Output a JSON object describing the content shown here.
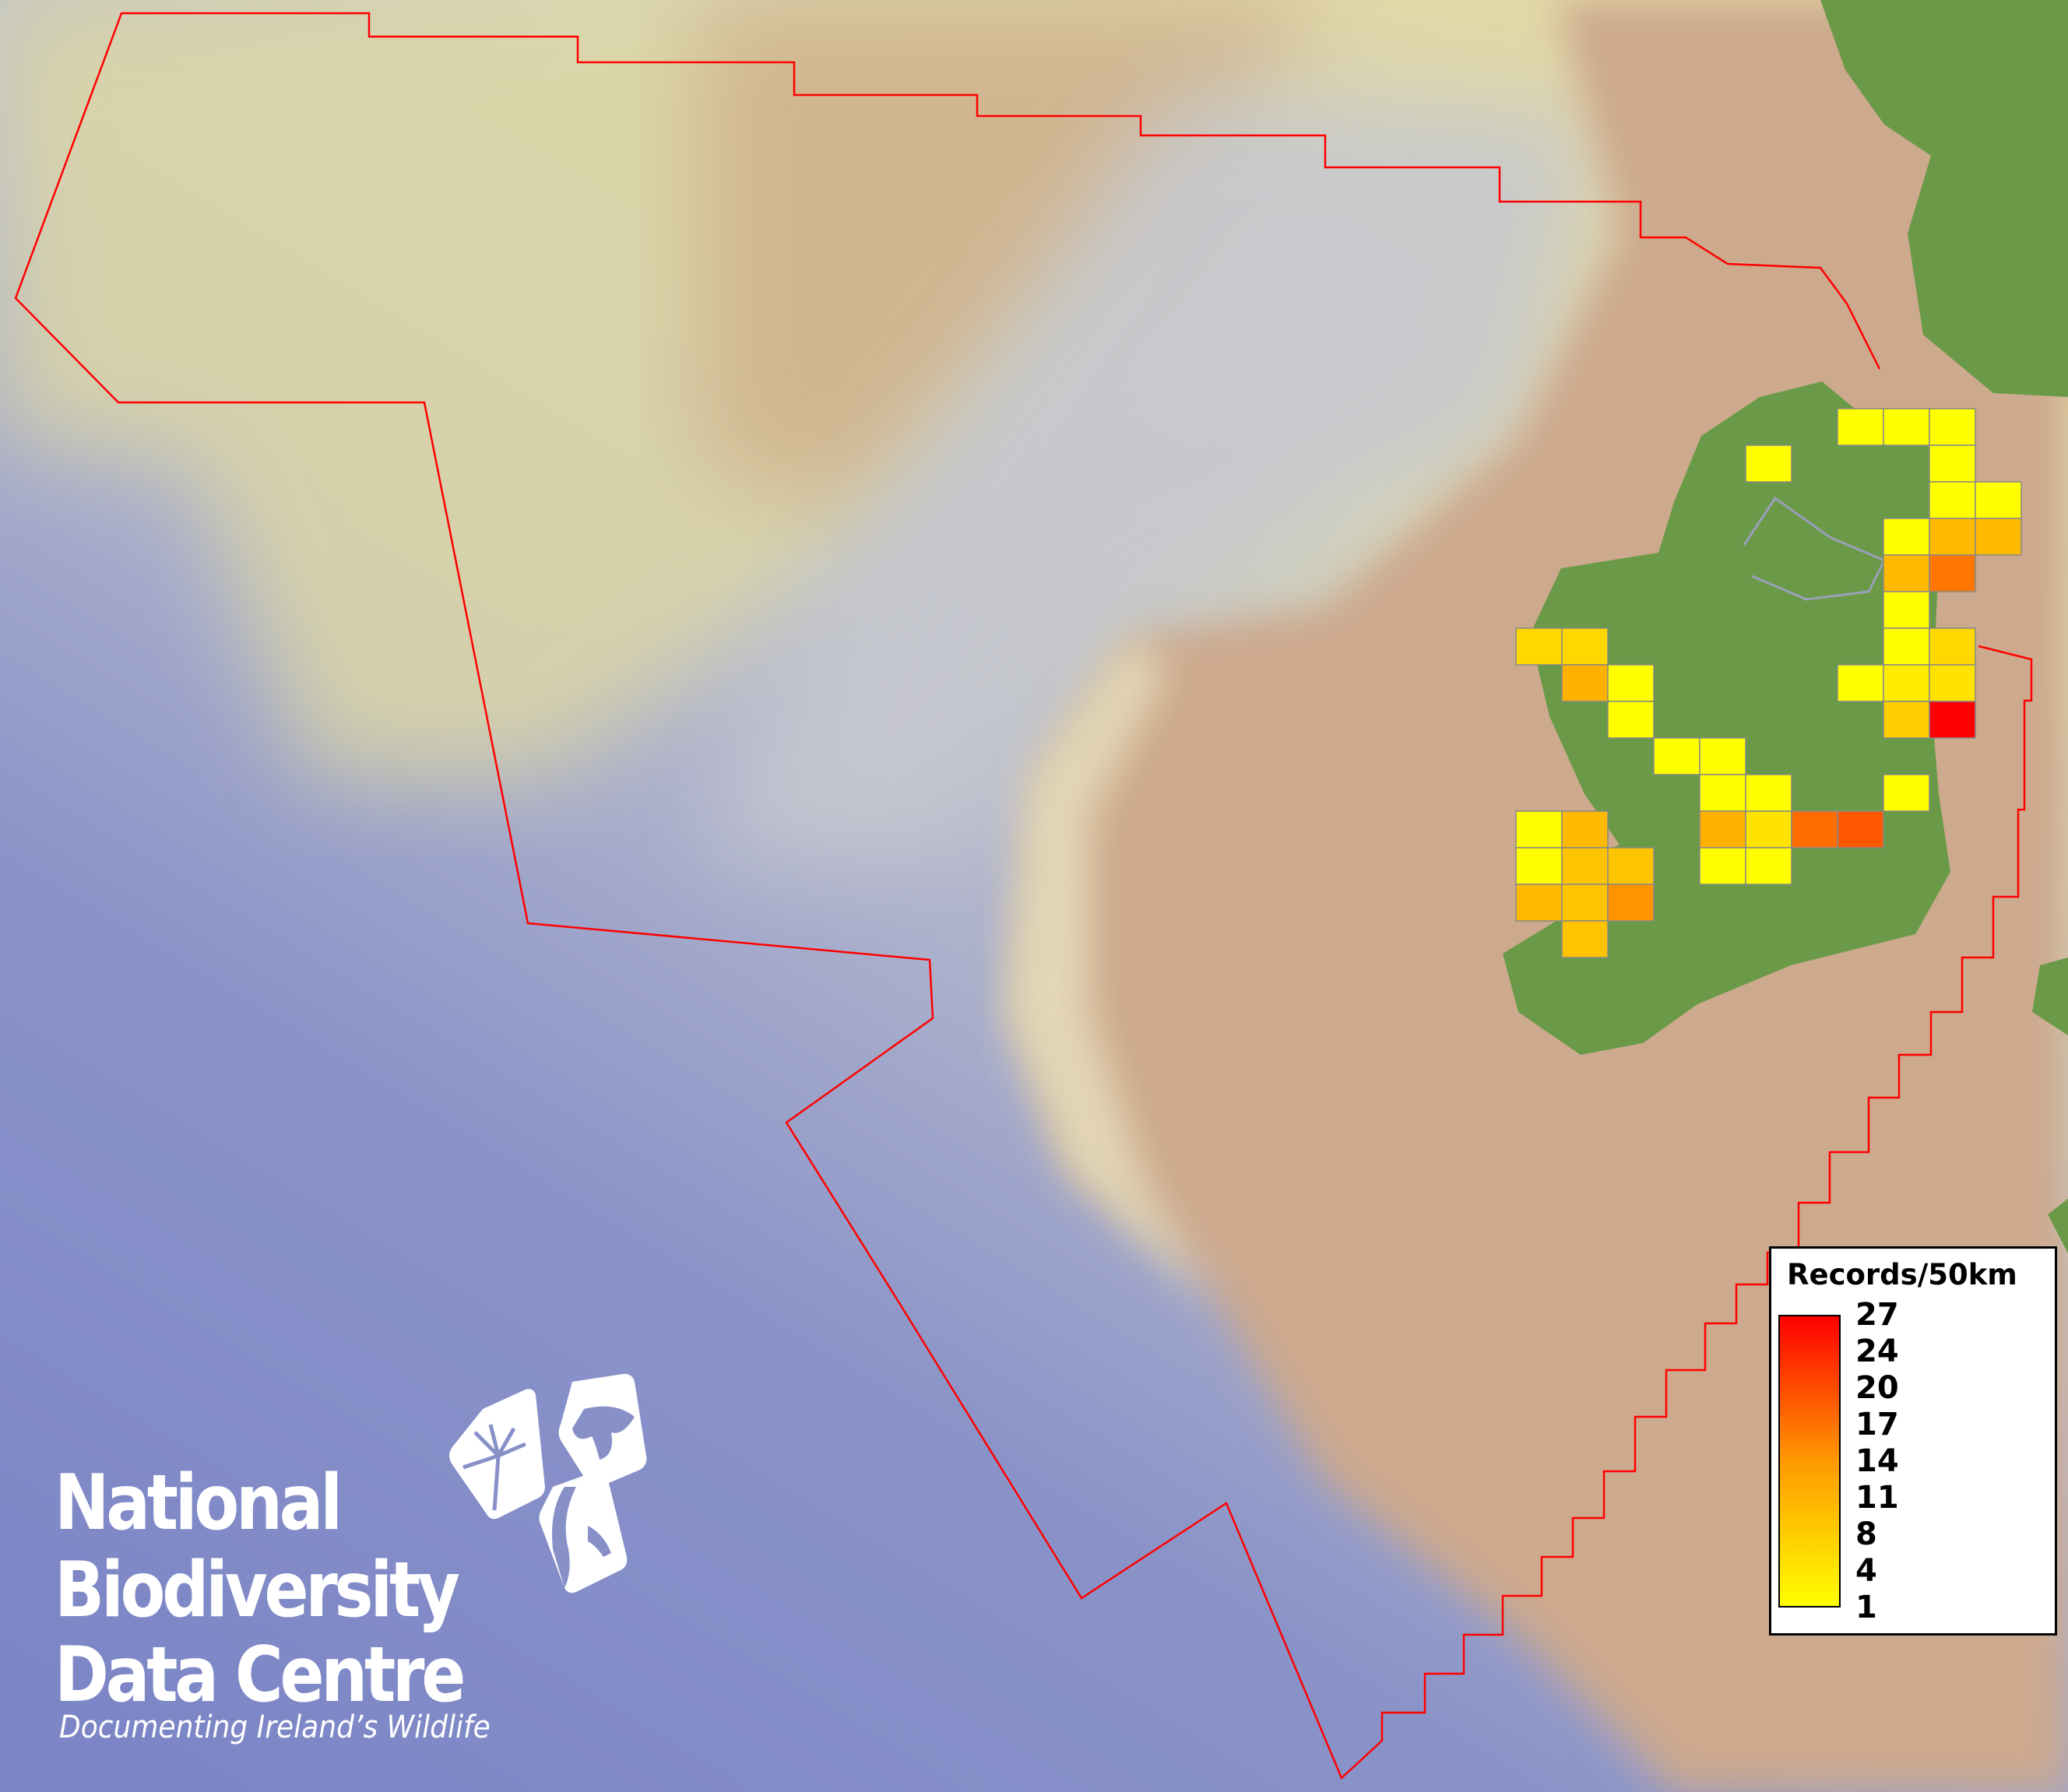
{
  "map": {
    "legend": {
      "title": "Records/50km",
      "labels": [
        "27",
        "24",
        "20",
        "17",
        "14",
        "11",
        "8",
        "4",
        "1"
      ],
      "min": 1,
      "max": 27,
      "color_low": "#ffff00",
      "color_high": "#ff0000"
    },
    "boundary_color": "#ff0000",
    "land_color": "#6a9a48",
    "sea_deep_color": "#7b85c4",
    "shelf_color": "#cda98d",
    "grid": {
      "cell": "50km",
      "values": [
        [
          null,
          null,
          null,
          null,
          null,
          null,
          null,
          1,
          1,
          1,
          null,
          null
        ],
        [
          null,
          null,
          null,
          null,
          null,
          1,
          null,
          null,
          null,
          1,
          null,
          null
        ],
        [
          null,
          null,
          null,
          null,
          null,
          null,
          null,
          null,
          null,
          1,
          1,
          null
        ],
        [
          null,
          null,
          null,
          null,
          null,
          null,
          null,
          null,
          1,
          8,
          8,
          null
        ],
        [
          null,
          null,
          null,
          null,
          null,
          null,
          null,
          null,
          8,
          15,
          null,
          null
        ],
        [
          null,
          null,
          null,
          null,
          null,
          null,
          null,
          null,
          1,
          null,
          null,
          null
        ],
        [
          5,
          5,
          null,
          null,
          null,
          null,
          null,
          null,
          1,
          5,
          null,
          null
        ],
        [
          null,
          9,
          1,
          null,
          null,
          null,
          null,
          1,
          3,
          4,
          null,
          null
        ],
        [
          null,
          null,
          1,
          null,
          null,
          null,
          null,
          null,
          6,
          27,
          null,
          null
        ],
        [
          null,
          null,
          null,
          1,
          1,
          null,
          null,
          null,
          null,
          null,
          null,
          null
        ],
        [
          null,
          null,
          null,
          null,
          1,
          1,
          null,
          null,
          1,
          null,
          null,
          null
        ],
        [
          1,
          8,
          null,
          null,
          9,
          4,
          16,
          18,
          null,
          null,
          null,
          null
        ],
        [
          1,
          7,
          7,
          null,
          1,
          1,
          null,
          null,
          null,
          null,
          null,
          null
        ],
        [
          8,
          7,
          12,
          null,
          null,
          null,
          null,
          null,
          null,
          null,
          null,
          null
        ],
        [
          null,
          7,
          null,
          null,
          null,
          null,
          null,
          null,
          null,
          null,
          null,
          null
        ]
      ]
    }
  },
  "logo": {
    "line1": "National",
    "line2": "Biodiversity",
    "line3": "Data Centre",
    "tagline": "Documenting Ireland’s Wildlife",
    "icons": [
      "tree-icon",
      "butterfly-icon",
      "seahorse-icon"
    ]
  }
}
